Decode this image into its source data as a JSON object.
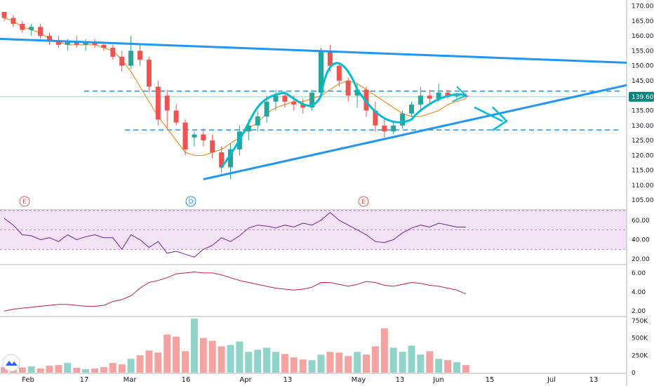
{
  "colors": {
    "up": "#26a69a",
    "up_fill": "#8fd3c9",
    "down": "#ef5350",
    "down_fill": "#f4a3a1",
    "trendline": "#2196f3",
    "hand_drawn": "#00bcd4",
    "ma": "#f57c00",
    "rsi": "#7b1fa2",
    "rsi_band": "#e1bee7",
    "macd": "#c2185b",
    "price_tag": "#00897b",
    "grid_text": "#131722"
  },
  "chart_data": [
    {
      "type": "candlestick",
      "name": "price",
      "x_axis_labels": [
        "Feb",
        "17",
        "Mar",
        "16",
        "Apr",
        "13",
        "May",
        "13",
        "Jun",
        "15",
        "Jul",
        "13"
      ],
      "y_ticks": [
        "170.00",
        "165.00",
        "160.00",
        "155.00",
        "150.00",
        "145.00",
        "140.00",
        "135.00",
        "130.00",
        "125.00",
        "120.00",
        "115.00",
        "110.00",
        "105.00"
      ],
      "ylim": [
        102,
        172
      ],
      "last_price_label": "139.60",
      "last_price": 139.6,
      "moving_average": [
        166,
        165,
        163,
        162,
        161,
        159,
        158,
        157,
        157,
        157,
        157,
        156,
        155,
        152,
        148,
        143,
        138,
        133,
        129,
        125,
        121,
        120,
        120,
        121,
        122,
        124,
        126,
        129,
        131,
        134,
        136,
        137,
        138,
        138,
        139,
        140,
        142,
        144,
        145,
        144,
        142,
        140,
        138,
        136,
        134,
        133,
        133,
        134,
        135,
        137,
        138,
        139
      ],
      "events": [
        {
          "label": "E",
          "kind": "earnings"
        },
        {
          "label": "D",
          "kind": "dividend"
        },
        {
          "label": "E",
          "kind": "earnings"
        }
      ],
      "horizontal_levels": [
        141.5,
        128.5
      ],
      "candles": [
        [
          168,
          168,
          165,
          166
        ],
        [
          166,
          167,
          163,
          164
        ],
        [
          164,
          165,
          161,
          162
        ],
        [
          162,
          164,
          160,
          163
        ],
        [
          163,
          164,
          159,
          160
        ],
        [
          160,
          161,
          157,
          158
        ],
        [
          158,
          160,
          156,
          157
        ],
        [
          157,
          159,
          155,
          158
        ],
        [
          158,
          160,
          156,
          157
        ],
        [
          157,
          159,
          155,
          158
        ],
        [
          158,
          159,
          156,
          157
        ],
        [
          157,
          158,
          155,
          156
        ],
        [
          156,
          157,
          152,
          153
        ],
        [
          153,
          155,
          148,
          150
        ],
        [
          150,
          160,
          149,
          155
        ],
        [
          155,
          157,
          150,
          152
        ],
        [
          152,
          153,
          141,
          143
        ],
        [
          143,
          145,
          130,
          132
        ],
        [
          140,
          142,
          129,
          135
        ],
        [
          135,
          137,
          130,
          131
        ],
        [
          131,
          132,
          120,
          122
        ],
        [
          126,
          128,
          123,
          127
        ],
        [
          127,
          129,
          123,
          125
        ],
        [
          125,
          127,
          119,
          121
        ],
        [
          121,
          123,
          114,
          116
        ],
        [
          116,
          124,
          112,
          122
        ],
        [
          122,
          130,
          120,
          128
        ],
        [
          128,
          132,
          125,
          130
        ],
        [
          130,
          135,
          128,
          133
        ],
        [
          133,
          140,
          131,
          138
        ],
        [
          138,
          142,
          135,
          140
        ],
        [
          140,
          141,
          136,
          138
        ],
        [
          138,
          140,
          135,
          137
        ],
        [
          137,
          139,
          134,
          136
        ],
        [
          136,
          142,
          135,
          141
        ],
        [
          141,
          156,
          140,
          155
        ],
        [
          155,
          157,
          148,
          150
        ],
        [
          150,
          151,
          143,
          145
        ],
        [
          145,
          146,
          138,
          140
        ],
        [
          140,
          144,
          136,
          142
        ],
        [
          142,
          143,
          133,
          135
        ],
        [
          135,
          138,
          128,
          130
        ],
        [
          130,
          132,
          126,
          128
        ],
        [
          128,
          131,
          127,
          130
        ],
        [
          130,
          135,
          129,
          134
        ],
        [
          134,
          138,
          133,
          137
        ],
        [
          137,
          143,
          135,
          140
        ],
        [
          140,
          142,
          137,
          139
        ],
        [
          139,
          144,
          138,
          141
        ],
        [
          141,
          142,
          139,
          140
        ],
        [
          140,
          141,
          139,
          140
        ],
        [
          140,
          141,
          139,
          139.6
        ]
      ]
    },
    {
      "type": "line",
      "name": "RSI",
      "y_ticks": [
        "60.00",
        "40.00",
        "20.00"
      ],
      "ylim": [
        15,
        70
      ],
      "band": [
        30,
        70
      ],
      "values": [
        62,
        55,
        45,
        44,
        40,
        42,
        38,
        45,
        40,
        43,
        45,
        42,
        42,
        30,
        45,
        40,
        32,
        38,
        26,
        28,
        25,
        22,
        30,
        34,
        42,
        38,
        44,
        52,
        55,
        54,
        52,
        55,
        53,
        57,
        55,
        60,
        68,
        60,
        55,
        50,
        45,
        38,
        37,
        40,
        47,
        52,
        55,
        53,
        57,
        55,
        53,
        53
      ]
    },
    {
      "type": "line",
      "name": "MACD",
      "y_ticks": [
        "6.00",
        "4.00",
        "2.00"
      ],
      "ylim": [
        1.5,
        6.8
      ],
      "values": [
        2.0,
        2.2,
        2.3,
        2.4,
        2.5,
        2.6,
        2.7,
        2.7,
        2.6,
        2.5,
        2.5,
        2.6,
        3.0,
        3.2,
        3.6,
        4.4,
        5.0,
        5.2,
        5.5,
        5.9,
        6.0,
        6.1,
        6.0,
        6.0,
        5.8,
        5.5,
        5.2,
        5.0,
        4.8,
        4.6,
        4.4,
        4.3,
        4.2,
        4.3,
        4.5,
        5.0,
        5.0,
        4.8,
        4.6,
        4.8,
        5.1,
        5.0,
        4.7,
        4.6,
        4.8,
        5.0,
        4.9,
        4.7,
        4.6,
        4.4,
        4.2,
        3.8
      ]
    },
    {
      "type": "bar",
      "name": "Volume",
      "y_ticks": [
        "750K",
        "500K",
        "250K",
        "0"
      ],
      "ylim": [
        0,
        800000
      ],
      "values": [
        80000,
        100000,
        75000,
        90000,
        60000,
        100000,
        110000,
        140000,
        70000,
        50000,
        60000,
        80000,
        140000,
        120000,
        200000,
        250000,
        320000,
        290000,
        550000,
        520000,
        310000,
        780000,
        500000,
        460000,
        380000,
        400000,
        450000,
        300000,
        330000,
        360000,
        300000,
        270000,
        220000,
        190000,
        180000,
        260000,
        300000,
        290000,
        240000,
        300000,
        260000,
        380000,
        640000,
        360000,
        300000,
        390000,
        260000,
        310000,
        200000,
        180000,
        150000,
        110000
      ]
    }
  ]
}
